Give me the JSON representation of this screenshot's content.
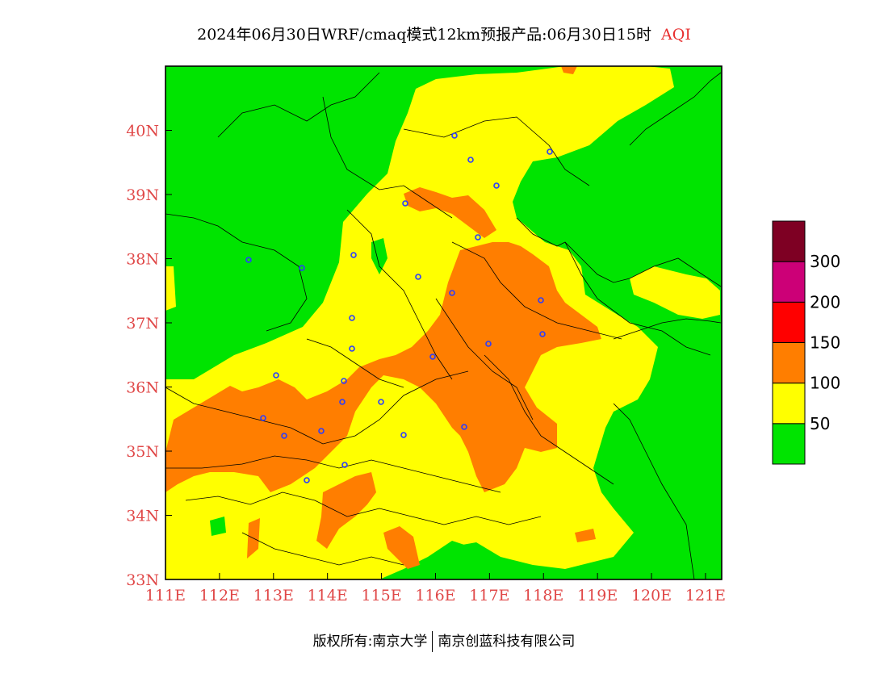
{
  "header": {
    "title": "2024年06月30日WRF/cmaq模式12km预报产品:06月30日15时",
    "product": "AQI"
  },
  "map": {
    "lon_range": [
      111,
      121.3
    ],
    "lat_range": [
      33,
      41
    ],
    "x_ticks": [
      "111E",
      "112E",
      "113E",
      "114E",
      "115E",
      "116E",
      "117E",
      "118E",
      "119E",
      "120E",
      "121E"
    ],
    "y_ticks": [
      "33N",
      "34N",
      "35N",
      "36N",
      "37N",
      "38N",
      "39N",
      "40N"
    ],
    "colors": {
      "good": "#00e400",
      "moderate": "#ffff00",
      "unhealthy_sensitive": "#ff7e00",
      "unhealthy": "#ff0000",
      "very_unhealthy": "#cc0077",
      "hazardous": "#7e0023",
      "station_marker": "#2a3cff"
    },
    "station_count": 28
  },
  "legend": {
    "labels": [
      "50",
      "100",
      "150",
      "200",
      "300"
    ],
    "colors": [
      "#00e400",
      "#ffff00",
      "#ff7e00",
      "#ff0000",
      "#cc0077",
      "#7e0023"
    ]
  },
  "footer": {
    "copyright": "版权所有:南京大学",
    "company": "南京创蓝科技有限公司"
  }
}
